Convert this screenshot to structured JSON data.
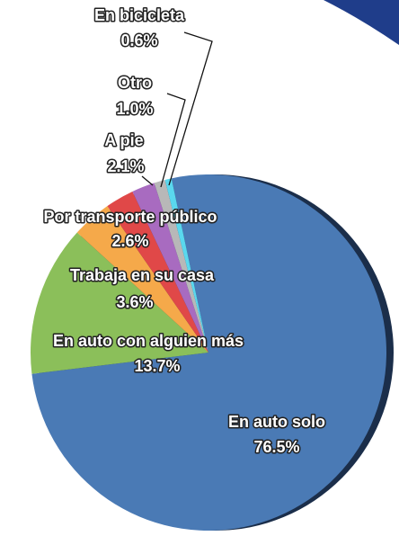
{
  "chart_data": {
    "type": "pie",
    "categories": [
      "En auto solo",
      "En auto con alguien más",
      "Trabaja en su casa",
      "Por transporte público",
      "A pie",
      "Otro",
      "En bicicleta"
    ],
    "values": [
      76.5,
      13.7,
      3.6,
      2.6,
      2.1,
      1.0,
      0.6
    ],
    "value_labels": [
      "76.5%",
      "13.7%",
      "3.6%",
      "2.6%",
      "2.1%",
      "1.0%",
      "0.6%"
    ],
    "colors": [
      "#4a7ab5",
      "#8bbf5a",
      "#f5a94a",
      "#e04848",
      "#a86bc0",
      "#b8b8b8",
      "#5ad8ee"
    ]
  }
}
